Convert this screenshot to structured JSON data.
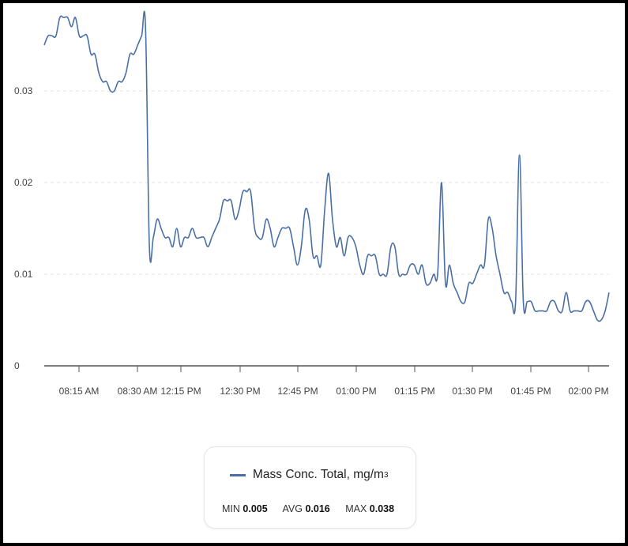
{
  "chart_data": {
    "type": "line",
    "title": "",
    "xlabel": "",
    "ylabel": "",
    "ylim": [
      0,
      0.04
    ],
    "yticks": [
      {
        "value": 0,
        "label": "0"
      },
      {
        "value": 0.01,
        "label": "0.01"
      },
      {
        "value": 0.02,
        "label": "0.02"
      },
      {
        "value": 0.03,
        "label": "0.03"
      }
    ],
    "xtick_labels": [
      "08:15 AM",
      "08:30 AM",
      "12:15 PM",
      "12:30 PM",
      "12:45 PM",
      "01:00 PM",
      "01:15 PM",
      "01:30 PM",
      "01:45 PM",
      "02:00 PM"
    ],
    "grid": true,
    "series": [
      {
        "name": "Mass Conc. Total, mg/m",
        "name_superscript": "3",
        "color": "#4a6fa5",
        "values": [
          0.035,
          0.036,
          0.036,
          0.036,
          0.038,
          0.038,
          0.038,
          0.037,
          0.038,
          0.036,
          0.036,
          0.036,
          0.034,
          0.034,
          0.032,
          0.031,
          0.031,
          0.03,
          0.03,
          0.031,
          0.031,
          0.032,
          0.034,
          0.034,
          0.035,
          0.036,
          0.037,
          0.013,
          0.014,
          0.016,
          0.015,
          0.014,
          0.014,
          0.013,
          0.015,
          0.013,
          0.014,
          0.014,
          0.015,
          0.014,
          0.014,
          0.014,
          0.013,
          0.014,
          0.015,
          0.016,
          0.018,
          0.018,
          0.018,
          0.016,
          0.017,
          0.019,
          0.019,
          0.019,
          0.015,
          0.014,
          0.014,
          0.016,
          0.015,
          0.013,
          0.014,
          0.015,
          0.015,
          0.015,
          0.013,
          0.011,
          0.013,
          0.017,
          0.016,
          0.012,
          0.012,
          0.011,
          0.017,
          0.021,
          0.016,
          0.013,
          0.014,
          0.012,
          0.014,
          0.014,
          0.013,
          0.011,
          0.01,
          0.012,
          0.012,
          0.012,
          0.01,
          0.01,
          0.01,
          0.013,
          0.013,
          0.01,
          0.01,
          0.01,
          0.011,
          0.011,
          0.01,
          0.011,
          0.009,
          0.009,
          0.01,
          0.01,
          0.02,
          0.009,
          0.011,
          0.009,
          0.008,
          0.007,
          0.007,
          0.009,
          0.009,
          0.01,
          0.011,
          0.011,
          0.016,
          0.015,
          0.012,
          0.01,
          0.008,
          0.008,
          0.007,
          0.007,
          0.023,
          0.007,
          0.007,
          0.007,
          0.006,
          0.006,
          0.006,
          0.006,
          0.007,
          0.007,
          0.006,
          0.006,
          0.008,
          0.006,
          0.006,
          0.006,
          0.006,
          0.007,
          0.007,
          0.006,
          0.005,
          0.005,
          0.006,
          0.008
        ]
      }
    ],
    "stats": {
      "min_label": "MIN",
      "min": "0.005",
      "avg_label": "AVG",
      "avg": "0.016",
      "max_label": "MAX",
      "max": "0.038"
    },
    "legend_position": "bottom"
  }
}
